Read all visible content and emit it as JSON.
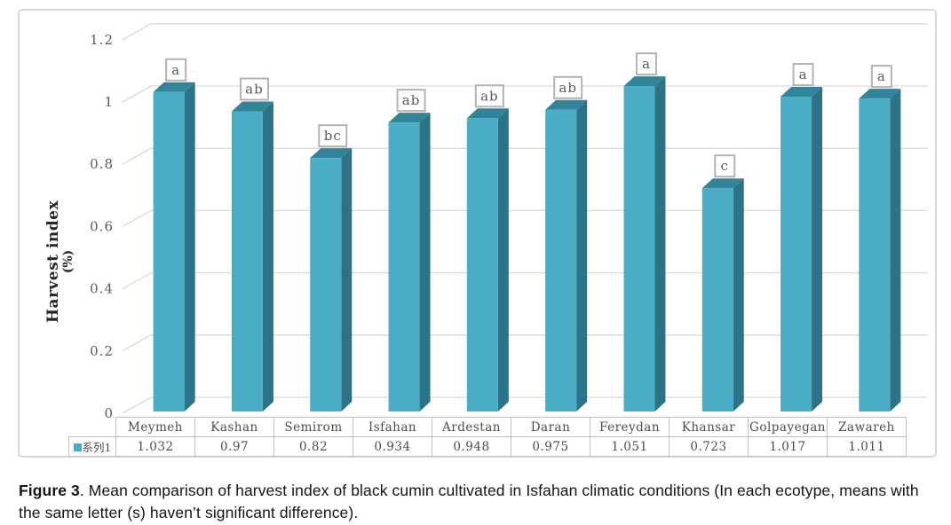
{
  "chart_data": {
    "type": "bar",
    "style": "3d-column",
    "title": "",
    "ylabel": "Harvest index (%)",
    "ylabel_line1": "Harvest index",
    "ylabel_line2": "(%)",
    "categories": [
      "Meymeh",
      "Kashan",
      "Semirom",
      "Isfahan",
      "Ardestan",
      "Daran",
      "Fereydan",
      "Khansar",
      "Golpayegan",
      "Zawareh"
    ],
    "values": [
      1.032,
      0.97,
      0.82,
      0.934,
      0.948,
      0.975,
      1.051,
      0.723,
      1.017,
      1.011
    ],
    "value_labels": [
      "1.032",
      "0.97",
      "0.82",
      "0.934",
      "0.948",
      "0.975",
      "1.051",
      "0.723",
      "1.017",
      "1.011"
    ],
    "significance_letters": [
      "a",
      "ab",
      "bc",
      "ab",
      "ab",
      "ab",
      "a",
      "c",
      "a",
      "a"
    ],
    "legend_label": "系列1",
    "legend_position": "bottom-table-left",
    "ytick_labels": [
      "0",
      "0.2",
      "0.4",
      "0.6",
      "0.8",
      "1",
      "1.2"
    ],
    "ytick_values": [
      0,
      0.2,
      0.4,
      0.6,
      0.8,
      1.0,
      1.2
    ],
    "ylim": [
      0,
      1.2
    ],
    "grid": true,
    "data_table_shown": true,
    "colors": {
      "bar_front": "#4bacc6",
      "bar_top": "#31859b",
      "bar_side": "#2d7388",
      "gridline": "#d9d9d9",
      "tick_text": "#595959",
      "letter_text": "#595959",
      "letter_box_border": "#b3b3b3",
      "letter_box_fill": "#ffffff",
      "table_border": "#bfbfbf",
      "table_text": "#4d4d4d",
      "frame_border": "#d8d8d8",
      "legend_swatch": "#4bacc6"
    }
  },
  "caption": {
    "figure_label": "Figure 3",
    "text": ". Mean comparison of harvest index of black cumin cultivated in Isfahan climatic conditions (In each ecotype, means with the same letter (s) haven’t significant difference)."
  }
}
